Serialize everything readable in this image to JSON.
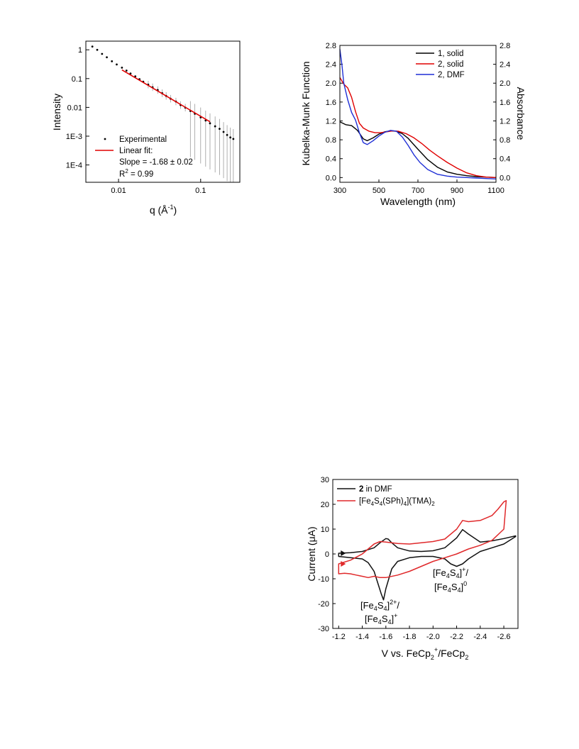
{
  "chart_data": [
    {
      "type": "scatter",
      "ylabel": "Intensity",
      "xlabel_base": "q (Å",
      "xlabel_sup": "-1",
      "xlabel_end": ")",
      "x_scale": "log",
      "y_scale": "log",
      "xlim": [
        0.004,
        0.3
      ],
      "ylim": [
        2.5e-05,
        2
      ],
      "x_ticks": [
        {
          "value": 0.01,
          "label": "0.01"
        },
        {
          "value": 0.1,
          "label": "0.1"
        }
      ],
      "y_ticks": [
        {
          "value": 1,
          "label": "1"
        },
        {
          "value": 0.1,
          "label": "0.1"
        },
        {
          "value": 0.01,
          "label": "0.01"
        },
        {
          "value": 0.001,
          "label": "1E-3"
        },
        {
          "value": 0.0001,
          "label": "1E-4"
        }
      ],
      "legend": {
        "experimental": "Experimental",
        "fit": "Linear fit:",
        "slope": "Slope = -1.68 ± 0.02",
        "r2_base": "R",
        "r2_sup": "2",
        "r2_end": " = 0.99"
      },
      "series": [
        {
          "name": "Experimental",
          "color": "#000000",
          "points": [
            [
              0.0048,
              1.3
            ],
            [
              0.0055,
              1.0
            ],
            [
              0.0063,
              0.72
            ],
            [
              0.0072,
              0.55
            ],
            [
              0.0083,
              0.4
            ],
            [
              0.0095,
              0.31
            ],
            [
              0.011,
              0.24
            ],
            [
              0.0125,
              0.19
            ],
            [
              0.014,
              0.15
            ],
            [
              0.016,
              0.12
            ],
            [
              0.018,
              0.095
            ],
            [
              0.02,
              0.078
            ],
            [
              0.023,
              0.062
            ],
            [
              0.026,
              0.05
            ],
            [
              0.03,
              0.04
            ],
            [
              0.034,
              0.031
            ],
            [
              0.038,
              0.025
            ],
            [
              0.043,
              0.02
            ],
            [
              0.05,
              0.016
            ],
            [
              0.057,
              0.012
            ],
            [
              0.065,
              0.0098
            ],
            [
              0.075,
              0.0075
            ],
            [
              0.085,
              0.006
            ],
            [
              0.1,
              0.0045
            ],
            [
              0.115,
              0.0035
            ],
            [
              0.13,
              0.0028
            ],
            [
              0.15,
              0.0022
            ],
            [
              0.17,
              0.0018
            ],
            [
              0.19,
              0.0014
            ],
            [
              0.21,
              0.0011
            ],
            [
              0.23,
              0.0009
            ],
            [
              0.25,
              0.0008
            ]
          ]
        },
        {
          "name": "Linear fit",
          "color": "#e00000",
          "slope": -1.68,
          "x_range": [
            0.011,
            0.13
          ],
          "y_at_start": 0.2
        }
      ]
    },
    {
      "type": "line",
      "xlabel": "Wavelength (nm)",
      "ylabel_left": "Kubelka-Munk Function",
      "ylabel_right": "Absorbance",
      "xlim": [
        300,
        1100
      ],
      "ylim": [
        -0.1,
        2.8
      ],
      "x_ticks": [
        300,
        500,
        700,
        900,
        1100
      ],
      "y_ticks": [
        "0.0",
        "0.4",
        "0.8",
        "1.2",
        "1.6",
        "2.0",
        "2.4",
        "2.8"
      ],
      "legend_position": "top-right",
      "series": [
        {
          "name": "1, solid",
          "color": "#000000",
          "x": [
            300,
            330,
            360,
            390,
            420,
            440,
            470,
            500,
            530,
            560,
            590,
            620,
            650,
            700,
            750,
            800,
            850,
            900,
            950,
            1000,
            1050,
            1100
          ],
          "y": [
            1.18,
            1.12,
            1.1,
            1.0,
            0.82,
            0.78,
            0.84,
            0.92,
            0.97,
            0.99,
            0.98,
            0.93,
            0.83,
            0.6,
            0.38,
            0.22,
            0.12,
            0.07,
            0.04,
            0.02,
            0.01,
            0.0
          ]
        },
        {
          "name": "2, solid",
          "color": "#e00000",
          "x": [
            300,
            320,
            340,
            360,
            380,
            400,
            420,
            450,
            480,
            510,
            540,
            570,
            600,
            640,
            680,
            720,
            760,
            800,
            850,
            900,
            950,
            1000,
            1050,
            1100
          ],
          "y": [
            2.12,
            1.98,
            1.9,
            1.7,
            1.4,
            1.15,
            1.05,
            0.98,
            0.95,
            0.95,
            0.97,
            0.99,
            0.98,
            0.93,
            0.84,
            0.72,
            0.58,
            0.46,
            0.32,
            0.2,
            0.1,
            0.04,
            0.01,
            0.0
          ]
        },
        {
          "name": "2, DMF",
          "color": "#1f2fd6",
          "x": [
            300,
            310,
            320,
            340,
            360,
            380,
            400,
            420,
            440,
            470,
            500,
            530,
            560,
            590,
            620,
            650,
            680,
            710,
            750,
            800,
            850,
            900,
            950,
            1000,
            1050,
            1100
          ],
          "y": [
            2.72,
            2.4,
            2.0,
            1.65,
            1.38,
            1.22,
            0.95,
            0.74,
            0.7,
            0.78,
            0.88,
            0.96,
            1.0,
            0.98,
            0.86,
            0.68,
            0.48,
            0.32,
            0.17,
            0.07,
            0.03,
            0.01,
            0.0,
            -0.01,
            -0.02,
            -0.03
          ]
        }
      ]
    },
    {
      "type": "line",
      "xlabel_base": "V vs. FeCp",
      "xlabel_sub1": "2",
      "xlabel_sup": "+",
      "xlabel_mid": "/FeCp",
      "xlabel_sub2": "2",
      "ylabel": "Current (μA)",
      "xlim": [
        -1.15,
        -2.72
      ],
      "ylim": [
        -30,
        30
      ],
      "x_ticks": [
        "-1.2",
        "-1.4",
        "-1.6",
        "-1.8",
        "-2.0",
        "-2.2",
        "-2.4",
        "-2.6"
      ],
      "y_ticks": [
        "30",
        "20",
        "10",
        "0",
        "-10",
        "-20",
        "-30"
      ],
      "legend_position": "top-left",
      "legend": {
        "series1_bold": "2",
        "series1_rest": " in DMF",
        "series2_a": "[Fe",
        "series2_sub1": "4",
        "series2_b": "S",
        "series2_sub2": "4",
        "series2_c": "(SPh)",
        "series2_sub3": "4",
        "series2_d": "](TMA)",
        "series2_sub4": "2"
      },
      "annotations": {
        "left_line1_a": "[Fe",
        "left_line1_sub1": "4",
        "left_line1_b": "S",
        "left_line1_sub2": "4",
        "left_line1_c": "]",
        "left_line1_sup": "2+",
        "left_line1_d": "/",
        "left_line2_a": "[Fe",
        "left_line2_sub1": "4",
        "left_line2_b": "S",
        "left_line2_sub2": "4",
        "left_line2_c": "]",
        "left_line2_sup": "+",
        "right_line1_a": "[Fe",
        "right_line1_sub1": "4",
        "right_line1_b": "S",
        "right_line1_sub2": "4",
        "right_line1_c": "]",
        "right_line1_sup": "+",
        "right_line1_d": "/",
        "right_line2_a": "[Fe",
        "right_line2_sub1": "4",
        "right_line2_b": "S",
        "right_line2_sub2": "4",
        "right_line2_c": "]",
        "right_line2_sup": "0"
      },
      "series": [
        {
          "name": "2 in DMF",
          "color": "#111111",
          "x": [
            -1.2,
            -1.3,
            -1.4,
            -1.5,
            -1.55,
            -1.6,
            -1.62,
            -1.65,
            -1.7,
            -1.8,
            -1.9,
            -2.0,
            -2.1,
            -2.2,
            -2.25,
            -2.3,
            -2.4,
            -2.5,
            -2.6,
            -2.7,
            -2.7,
            -2.6,
            -2.5,
            -2.4,
            -2.3,
            -2.25,
            -2.2,
            -2.15,
            -2.1,
            -2.0,
            -1.9,
            -1.8,
            -1.7,
            -1.65,
            -1.6,
            -1.58,
            -1.56,
            -1.5,
            -1.45,
            -1.4,
            -1.3,
            -1.2
          ],
          "y": [
            0.3,
            0.5,
            1.0,
            2.5,
            4.5,
            6.2,
            6.0,
            4.5,
            2.5,
            1.2,
            1.0,
            1.3,
            2.5,
            6.5,
            9.8,
            8.0,
            4.8,
            5.3,
            6.2,
            7.3,
            7.0,
            4.0,
            2.5,
            1.0,
            -2.0,
            -4.0,
            -5.0,
            -4.0,
            -2.0,
            -1.0,
            -1.0,
            -1.5,
            -3.0,
            -6.0,
            -14.0,
            -18.5,
            -16.0,
            -7.0,
            -3.5,
            -2.0,
            -1.5,
            -1.0
          ]
        },
        {
          "name": "[Fe4S4(SPh)4](TMA)2",
          "color": "#e0292b",
          "x": [
            -1.2,
            -1.3,
            -1.4,
            -1.5,
            -1.55,
            -1.6,
            -1.7,
            -1.8,
            -1.9,
            -2.0,
            -2.1,
            -2.2,
            -2.25,
            -2.3,
            -2.4,
            -2.5,
            -2.55,
            -2.6,
            -2.62,
            -2.6,
            -2.5,
            -2.4,
            -2.3,
            -2.2,
            -2.1,
            -2.0,
            -1.9,
            -1.8,
            -1.7,
            -1.6,
            -1.55,
            -1.5,
            -1.45,
            -1.4,
            -1.35,
            -1.3,
            -1.25,
            -1.2
          ],
          "y": [
            -4.0,
            -2.5,
            0.0,
            4.0,
            5.0,
            4.8,
            4.2,
            4.0,
            4.5,
            5.0,
            6.0,
            10.0,
            13.5,
            13.0,
            13.5,
            15.5,
            18.0,
            21.0,
            21.5,
            10.0,
            5.5,
            3.5,
            2.0,
            0.0,
            -1.5,
            -3.0,
            -5.0,
            -7.0,
            -8.5,
            -9.5,
            -9.5,
            -9.0,
            -9.5,
            -9.0,
            -8.5,
            -8.0,
            -7.8,
            -8.0
          ]
        }
      ]
    }
  ]
}
